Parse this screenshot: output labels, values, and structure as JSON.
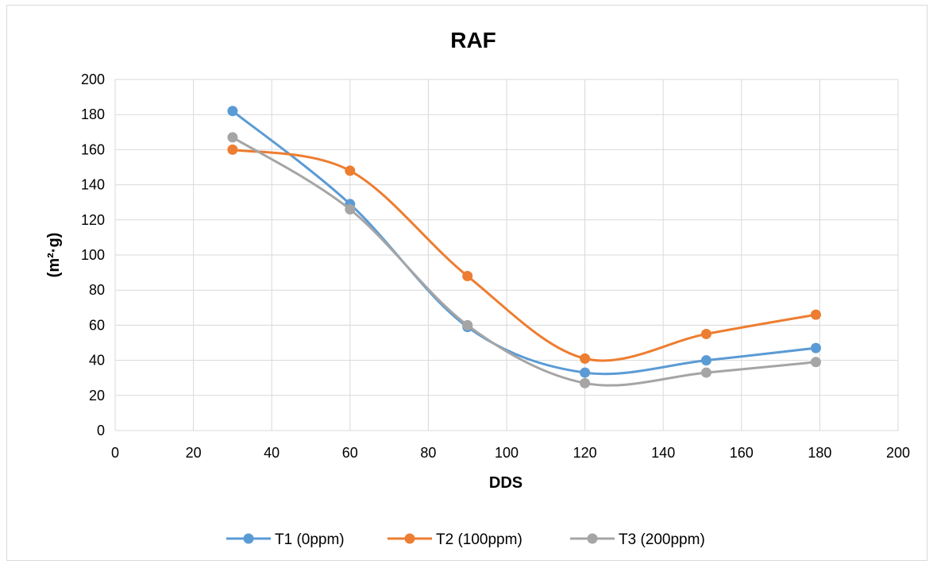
{
  "chart_data": {
    "type": "line",
    "title": "RAF",
    "xlabel": "DDS",
    "ylabel": "(m²·g)",
    "xlim": [
      0,
      200
    ],
    "ylim": [
      0,
      200
    ],
    "xticks": [
      0,
      20,
      40,
      60,
      80,
      100,
      120,
      140,
      160,
      180,
      200
    ],
    "yticks": [
      0,
      20,
      40,
      60,
      80,
      100,
      120,
      140,
      160,
      180,
      200
    ],
    "grid": true,
    "smooth": true,
    "legend_position": "bottom",
    "series": [
      {
        "name": "T1 (0ppm)",
        "color": "#5b9bd5",
        "x": [
          30,
          60,
          90,
          120,
          151,
          179
        ],
        "y": [
          182,
          129,
          59,
          33,
          40,
          47
        ]
      },
      {
        "name": "T2 (100ppm)",
        "color": "#ed7d31",
        "x": [
          30,
          60,
          90,
          120,
          151,
          179
        ],
        "y": [
          160,
          148,
          88,
          41,
          55,
          66
        ]
      },
      {
        "name": "T3 (200ppm)",
        "color": "#a5a5a5",
        "x": [
          30,
          60,
          90,
          120,
          151,
          179
        ],
        "y": [
          167,
          126,
          60,
          27,
          33,
          39
        ]
      }
    ]
  }
}
